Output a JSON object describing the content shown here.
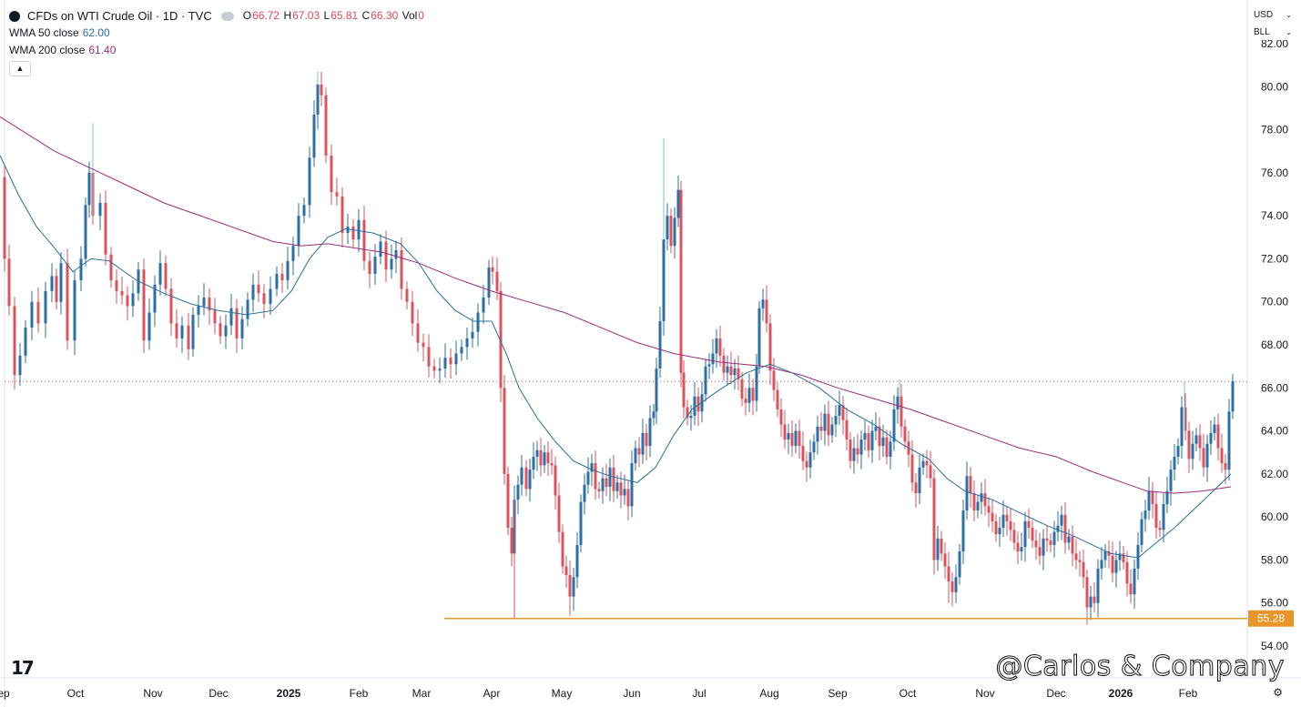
{
  "header": {
    "symbol": "CFDs on WTI Crude Oil · 1D · TVC",
    "o_label": "O",
    "o_value": "66.72",
    "h_label": "H",
    "h_value": "67.03",
    "l_label": "L",
    "l_value": "65.81",
    "c_label": "C",
    "c_value": "66.30",
    "vol_label": "Vol",
    "vol_value": "0",
    "wma50_label": "WMA 50 close",
    "wma50_value": "62.00",
    "wma200_label": "WMA 200 close",
    "wma200_value": "61.40",
    "collapse_icon": "chevron-up-icon"
  },
  "controls": {
    "currency": "USD",
    "unit": "BLL"
  },
  "watermark": "@Carlos & Company",
  "colors": {
    "up": "#2e6fa5",
    "down": "#d9545f",
    "wma50": "#2a6f9a",
    "wma200": "#9d2c7b",
    "support": "#e8952b",
    "last_price": "#d94b58"
  },
  "chart_data": {
    "type": "candlestick",
    "title": "CFDs on WTI Crude Oil · 1D · TVC",
    "ylim": [
      53.5,
      82.0
    ],
    "y_ticks": [
      "54.00",
      "56.00",
      "58.00",
      "60.00",
      "62.00",
      "64.00",
      "66.00",
      "68.00",
      "70.00",
      "72.00",
      "74.00",
      "76.00",
      "78.00",
      "80.00",
      "82.00"
    ],
    "x_ticks": [
      "Sep",
      "Oct",
      "Nov",
      "Dec",
      "2025",
      "Feb",
      "Mar",
      "Apr",
      "May",
      "Jun",
      "Jul",
      "Aug",
      "Sep",
      "Oct",
      "Nov",
      "Dec",
      "2026",
      "Feb"
    ],
    "close_path": [
      [
        0,
        75.8
      ],
      [
        3,
        72.0
      ],
      [
        8,
        69.8
      ],
      [
        14,
        66.6
      ],
      [
        20,
        67.5
      ],
      [
        26,
        68.8
      ],
      [
        33,
        70.0
      ],
      [
        40,
        69.0
      ],
      [
        48,
        70.5
      ],
      [
        55,
        71.2
      ],
      [
        60,
        70.0
      ],
      [
        65,
        71.8
      ],
      [
        72,
        68.2
      ],
      [
        80,
        71.0
      ],
      [
        87,
        72.0
      ],
      [
        92,
        74.5
      ],
      [
        96,
        76.0
      ],
      [
        100,
        74.0
      ],
      [
        108,
        74.6
      ],
      [
        114,
        72.2
      ],
      [
        120,
        71.0
      ],
      [
        126,
        70.5
      ],
      [
        132,
        70.3
      ],
      [
        138,
        69.8
      ],
      [
        144,
        70.4
      ],
      [
        150,
        71.5
      ],
      [
        156,
        68.2
      ],
      [
        162,
        69.5
      ],
      [
        168,
        70.8
      ],
      [
        174,
        71.8
      ],
      [
        180,
        70.6
      ],
      [
        186,
        69.0
      ],
      [
        192,
        68.3
      ],
      [
        198,
        68.9
      ],
      [
        205,
        67.8
      ],
      [
        210,
        69.4
      ],
      [
        216,
        69.8
      ],
      [
        222,
        70.2
      ],
      [
        228,
        69.6
      ],
      [
        234,
        69.0
      ],
      [
        240,
        68.4
      ],
      [
        246,
        68.9
      ],
      [
        252,
        69.7
      ],
      [
        258,
        68.3
      ],
      [
        264,
        69.2
      ],
      [
        270,
        70.1
      ],
      [
        276,
        70.8
      ],
      [
        282,
        70.4
      ],
      [
        288,
        69.9
      ],
      [
        295,
        70.6
      ],
      [
        302,
        71.3
      ],
      [
        308,
        71.0
      ],
      [
        314,
        71.9
      ],
      [
        320,
        72.6
      ],
      [
        326,
        74.0
      ],
      [
        332,
        74.5
      ],
      [
        338,
        76.7
      ],
      [
        343,
        78.7
      ],
      [
        347,
        80.1
      ],
      [
        351,
        79.6
      ],
      [
        356,
        76.8
      ],
      [
        362,
        75.1
      ],
      [
        368,
        74.9
      ],
      [
        374,
        73.2
      ],
      [
        380,
        73.5
      ],
      [
        386,
        72.9
      ],
      [
        392,
        73.8
      ],
      [
        398,
        71.9
      ],
      [
        404,
        71.3
      ],
      [
        410,
        72.1
      ],
      [
        416,
        72.8
      ],
      [
        422,
        71.5
      ],
      [
        428,
        72.0
      ],
      [
        433,
        72.4
      ],
      [
        439,
        70.6
      ],
      [
        445,
        70.0
      ],
      [
        451,
        69.0
      ],
      [
        457,
        68.1
      ],
      [
        463,
        67.9
      ],
      [
        469,
        67.0
      ],
      [
        475,
        66.8
      ],
      [
        481,
        66.9
      ],
      [
        487,
        67.4
      ],
      [
        493,
        67.1
      ],
      [
        499,
        67.6
      ],
      [
        505,
        67.9
      ],
      [
        511,
        68.3
      ],
      [
        517,
        68.6
      ],
      [
        523,
        69.5
      ],
      [
        529,
        70.2
      ],
      [
        535,
        71.6
      ],
      [
        539,
        71.4
      ],
      [
        544,
        70.5
      ],
      [
        548,
        66.0
      ],
      [
        552,
        62.0
      ],
      [
        556,
        59.5
      ],
      [
        560,
        58.3
      ],
      [
        563,
        60.8
      ],
      [
        567,
        61.5
      ],
      [
        571,
        62.3
      ],
      [
        576,
        61.3
      ],
      [
        580,
        62.2
      ],
      [
        584,
        62.8
      ],
      [
        588,
        63.1
      ],
      [
        592,
        62.4
      ],
      [
        596,
        63.0
      ],
      [
        600,
        62.5
      ],
      [
        604,
        62.4
      ],
      [
        608,
        61.0
      ],
      [
        612,
        59.3
      ],
      [
        616,
        57.7
      ],
      [
        620,
        57.3
      ],
      [
        624,
        56.3
      ],
      [
        628,
        57.2
      ],
      [
        632,
        58.7
      ],
      [
        636,
        60.7
      ],
      [
        640,
        61.5
      ],
      [
        644,
        62.1
      ],
      [
        648,
        62.5
      ],
      [
        652,
        61.3
      ],
      [
        656,
        61.2
      ],
      [
        660,
        61.8
      ],
      [
        664,
        61.4
      ],
      [
        668,
        62.3
      ],
      [
        672,
        61.2
      ],
      [
        676,
        61.6
      ],
      [
        680,
        61.0
      ],
      [
        684,
        61.3
      ],
      [
        688,
        60.5
      ],
      [
        692,
        62.5
      ],
      [
        696,
        63.2
      ],
      [
        700,
        62.9
      ],
      [
        704,
        63.9
      ],
      [
        708,
        63.3
      ],
      [
        712,
        64.6
      ],
      [
        716,
        64.9
      ],
      [
        719,
        66.9
      ],
      [
        723,
        69.1
      ],
      [
        727,
        72.9
      ],
      [
        731,
        74.0
      ],
      [
        735,
        72.6
      ],
      [
        739,
        73.9
      ],
      [
        743,
        75.2
      ],
      [
        746,
        66.7
      ],
      [
        749,
        65.1
      ],
      [
        753,
        64.6
      ],
      [
        757,
        64.7
      ],
      [
        761,
        65.6
      ],
      [
        765,
        64.9
      ],
      [
        769,
        65.7
      ],
      [
        773,
        67.0
      ],
      [
        777,
        67.1
      ],
      [
        781,
        67.6
      ],
      [
        785,
        68.3
      ],
      [
        789,
        67.5
      ],
      [
        793,
        66.7
      ],
      [
        797,
        67.0
      ],
      [
        801,
        66.6
      ],
      [
        805,
        66.9
      ],
      [
        809,
        66.4
      ],
      [
        813,
        65.5
      ],
      [
        817,
        65.3
      ],
      [
        821,
        66.0
      ],
      [
        825,
        65.4
      ],
      [
        829,
        67.0
      ],
      [
        832,
        69.7
      ],
      [
        836,
        70.1
      ],
      [
        840,
        69.0
      ],
      [
        844,
        66.8
      ],
      [
        848,
        65.9
      ],
      [
        852,
        65.0
      ],
      [
        856,
        64.3
      ],
      [
        860,
        63.6
      ],
      [
        864,
        63.9
      ],
      [
        868,
        63.3
      ],
      [
        872,
        64.0
      ],
      [
        876,
        63.3
      ],
      [
        880,
        62.6
      ],
      [
        884,
        62.3
      ],
      [
        888,
        63.0
      ],
      [
        892,
        63.5
      ],
      [
        896,
        64.2
      ],
      [
        900,
        64.0
      ],
      [
        904,
        64.8
      ],
      [
        908,
        63.8
      ],
      [
        912,
        64.3
      ],
      [
        916,
        64.7
      ],
      [
        920,
        65.2
      ],
      [
        924,
        64.5
      ],
      [
        928,
        63.6
      ],
      [
        932,
        62.6
      ],
      [
        936,
        63.2
      ],
      [
        940,
        62.9
      ],
      [
        944,
        63.6
      ],
      [
        948,
        63.9
      ],
      [
        952,
        63.1
      ],
      [
        956,
        64.0
      ],
      [
        960,
        64.2
      ],
      [
        964,
        63.3
      ],
      [
        968,
        63.7
      ],
      [
        972,
        62.8
      ],
      [
        976,
        63.5
      ],
      [
        980,
        65.0
      ],
      [
        984,
        65.6
      ],
      [
        988,
        64.2
      ],
      [
        992,
        63.5
      ],
      [
        996,
        62.9
      ],
      [
        1000,
        61.6
      ],
      [
        1004,
        61.1
      ],
      [
        1008,
        62.3
      ],
      [
        1012,
        62.6
      ],
      [
        1016,
        62.4
      ],
      [
        1020,
        61.8
      ],
      [
        1024,
        58.0
      ],
      [
        1028,
        59.0
      ],
      [
        1032,
        58.3
      ],
      [
        1036,
        57.7
      ],
      [
        1040,
        57.0
      ],
      [
        1044,
        56.5
      ],
      [
        1048,
        57.2
      ],
      [
        1052,
        58.4
      ],
      [
        1056,
        60.3
      ],
      [
        1060,
        61.9
      ],
      [
        1064,
        61.1
      ],
      [
        1068,
        60.3
      ],
      [
        1072,
        60.7
      ],
      [
        1076,
        61.1
      ],
      [
        1080,
        60.5
      ],
      [
        1084,
        60.2
      ],
      [
        1088,
        59.8
      ],
      [
        1092,
        59.2
      ],
      [
        1096,
        59.5
      ],
      [
        1100,
        60.1
      ],
      [
        1104,
        59.8
      ],
      [
        1108,
        59.4
      ],
      [
        1112,
        58.8
      ],
      [
        1116,
        58.4
      ],
      [
        1120,
        58.6
      ],
      [
        1124,
        59.8
      ],
      [
        1128,
        59.5
      ],
      [
        1132,
        58.9
      ],
      [
        1136,
        58.6
      ],
      [
        1140,
        58.2
      ],
      [
        1144,
        59.0
      ],
      [
        1148,
        58.9
      ],
      [
        1152,
        58.7
      ],
      [
        1156,
        59.3
      ],
      [
        1160,
        59.6
      ],
      [
        1164,
        60.1
      ],
      [
        1168,
        58.8
      ],
      [
        1172,
        59.1
      ],
      [
        1176,
        58.3
      ],
      [
        1180,
        58.0
      ],
      [
        1184,
        57.9
      ],
      [
        1188,
        57.2
      ],
      [
        1192,
        55.8
      ],
      [
        1196,
        56.3
      ],
      [
        1200,
        56.0
      ],
      [
        1204,
        57.6
      ],
      [
        1208,
        58.0
      ],
      [
        1212,
        58.4
      ],
      [
        1216,
        58.2
      ],
      [
        1220,
        57.4
      ],
      [
        1224,
        58.0
      ],
      [
        1228,
        58.3
      ],
      [
        1232,
        57.9
      ],
      [
        1236,
        56.9
      ],
      [
        1240,
        56.4
      ],
      [
        1244,
        57.6
      ],
      [
        1248,
        58.7
      ],
      [
        1252,
        59.9
      ],
      [
        1256,
        60.3
      ],
      [
        1260,
        61.2
      ],
      [
        1264,
        60.6
      ],
      [
        1268,
        59.5
      ],
      [
        1272,
        59.4
      ],
      [
        1276,
        60.6
      ],
      [
        1280,
        61.2
      ],
      [
        1284,
        62.2
      ],
      [
        1288,
        62.8
      ],
      [
        1292,
        63.3
      ],
      [
        1296,
        65.1
      ],
      [
        1300,
        64.0
      ],
      [
        1304,
        62.7
      ],
      [
        1308,
        63.4
      ],
      [
        1312,
        63.8
      ],
      [
        1316,
        63.2
      ],
      [
        1320,
        62.3
      ],
      [
        1324,
        63.4
      ],
      [
        1328,
        63.9
      ],
      [
        1332,
        64.3
      ],
      [
        1336,
        63.2
      ],
      [
        1340,
        62.5
      ],
      [
        1344,
        62.2
      ],
      [
        1348,
        64.9
      ],
      [
        1352,
        66.3
      ]
    ],
    "wicks": [
      [
        563,
        55.3
      ],
      [
        727,
        77.6
      ],
      [
        100,
        78.3
      ],
      [
        347,
        80.7
      ],
      [
        986,
        66.4
      ],
      [
        1192,
        55.0
      ],
      [
        624,
        55.4
      ],
      [
        1040,
        56.0
      ],
      [
        1299,
        66.3
      ]
    ],
    "wma200_path": [
      [
        0,
        78.6
      ],
      [
        30,
        77.8
      ],
      [
        60,
        77.0
      ],
      [
        100,
        76.2
      ],
      [
        140,
        75.4
      ],
      [
        180,
        74.6
      ],
      [
        220,
        74.0
      ],
      [
        260,
        73.4
      ],
      [
        300,
        72.8
      ],
      [
        330,
        72.6
      ],
      [
        360,
        72.7
      ],
      [
        390,
        72.5
      ],
      [
        420,
        72.3
      ],
      [
        460,
        71.8
      ],
      [
        500,
        71.1
      ],
      [
        540,
        70.5
      ],
      [
        580,
        70.0
      ],
      [
        620,
        69.5
      ],
      [
        660,
        68.8
      ],
      [
        700,
        68.1
      ],
      [
        740,
        67.6
      ],
      [
        790,
        67.2
      ],
      [
        840,
        67.0
      ],
      [
        880,
        66.6
      ],
      [
        920,
        66.0
      ],
      [
        960,
        65.5
      ],
      [
        1000,
        65.0
      ],
      [
        1040,
        64.4
      ],
      [
        1080,
        63.8
      ],
      [
        1120,
        63.2
      ],
      [
        1160,
        62.8
      ],
      [
        1200,
        62.1
      ],
      [
        1240,
        61.5
      ],
      [
        1260,
        61.2
      ],
      [
        1290,
        61.1
      ],
      [
        1320,
        61.2
      ],
      [
        1352,
        61.4
      ]
    ],
    "wma50_path": [
      [
        0,
        76.8
      ],
      [
        20,
        75.0
      ],
      [
        40,
        73.5
      ],
      [
        60,
        72.5
      ],
      [
        80,
        71.4
      ],
      [
        100,
        72.0
      ],
      [
        120,
        71.9
      ],
      [
        150,
        71.0
      ],
      [
        180,
        70.4
      ],
      [
        210,
        69.9
      ],
      [
        240,
        69.6
      ],
      [
        270,
        69.4
      ],
      [
        300,
        69.6
      ],
      [
        320,
        70.5
      ],
      [
        340,
        72.0
      ],
      [
        360,
        73.0
      ],
      [
        380,
        73.4
      ],
      [
        410,
        73.2
      ],
      [
        440,
        72.7
      ],
      [
        460,
        71.8
      ],
      [
        480,
        70.5
      ],
      [
        500,
        69.6
      ],
      [
        520,
        69.1
      ],
      [
        540,
        69.1
      ],
      [
        556,
        67.6
      ],
      [
        570,
        66.0
      ],
      [
        590,
        64.6
      ],
      [
        610,
        63.5
      ],
      [
        630,
        62.6
      ],
      [
        650,
        62.2
      ],
      [
        670,
        61.9
      ],
      [
        700,
        61.6
      ],
      [
        720,
        62.3
      ],
      [
        740,
        63.8
      ],
      [
        760,
        65.0
      ],
      [
        790,
        65.9
      ],
      [
        820,
        66.7
      ],
      [
        846,
        67.1
      ],
      [
        870,
        66.7
      ],
      [
        900,
        66.0
      ],
      [
        930,
        65.0
      ],
      [
        960,
        64.3
      ],
      [
        990,
        63.4
      ],
      [
        1020,
        62.7
      ],
      [
        1040,
        61.8
      ],
      [
        1060,
        61.2
      ],
      [
        1090,
        60.8
      ],
      [
        1120,
        60.2
      ],
      [
        1150,
        59.6
      ],
      [
        1180,
        59.1
      ],
      [
        1200,
        58.7
      ],
      [
        1220,
        58.3
      ],
      [
        1250,
        58.1
      ],
      [
        1270,
        58.8
      ],
      [
        1290,
        59.5
      ],
      [
        1310,
        60.3
      ],
      [
        1330,
        61.1
      ],
      [
        1352,
        62.0
      ]
    ],
    "last_price_line": 66.3,
    "support_level": {
      "value": 55.28,
      "label": "55.28",
      "x_start": 488
    }
  }
}
